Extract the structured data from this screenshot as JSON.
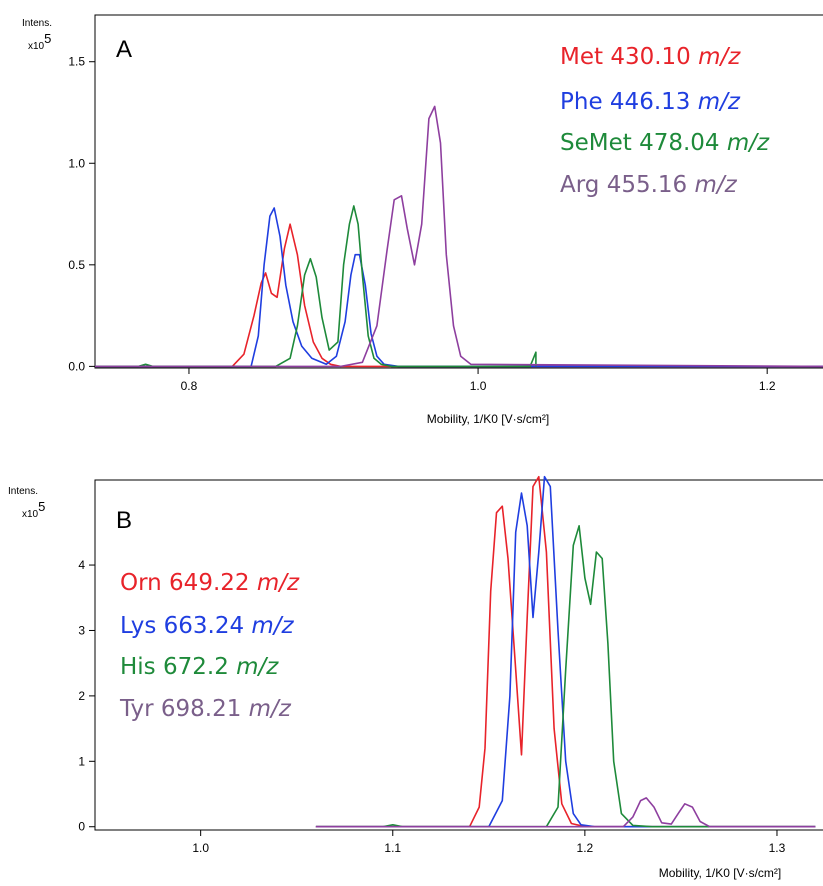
{
  "chart_data": [
    {
      "type": "line",
      "panel_label": "A",
      "ylabel": "Intens.",
      "ylabel_mult_base": "x10",
      "ylabel_mult_exp": "5",
      "xlabel": "Mobility, 1/K0 [V·s/cm²]",
      "xlim": [
        0.735,
        1.24
      ],
      "ylim": [
        -0.008,
        1.73
      ],
      "xticks": [
        0.8,
        1.0,
        1.2
      ],
      "xtick_labels": [
        "0.8",
        "1.0",
        "1.2"
      ],
      "yticks": [
        0.0,
        0.5,
        1.0,
        1.5
      ],
      "ytick_labels": [
        "0.0",
        "0.5",
        "1.0",
        "1.5"
      ],
      "legend_position": "top-right",
      "series": [
        {
          "name": "Met",
          "mz": "430.10",
          "unit": "m/z",
          "color": "#e8232a",
          "x": [
            0.735,
            0.83,
            0.838,
            0.845,
            0.85,
            0.853,
            0.857,
            0.861,
            0.866,
            0.87,
            0.875,
            0.88,
            0.886,
            0.892,
            0.898,
            0.905,
            1.24
          ],
          "y": [
            0.0,
            0.0,
            0.06,
            0.25,
            0.41,
            0.46,
            0.36,
            0.34,
            0.58,
            0.7,
            0.55,
            0.3,
            0.12,
            0.04,
            0.01,
            0.0,
            0.0
          ]
        },
        {
          "name": "Phe",
          "mz": "446.13",
          "unit": "m/z",
          "color": "#1f3ee0",
          "x": [
            0.735,
            0.843,
            0.848,
            0.852,
            0.856,
            0.859,
            0.863,
            0.867,
            0.872,
            0.878,
            0.885,
            0.895,
            0.902,
            0.908,
            0.912,
            0.915,
            0.918,
            0.922,
            0.926,
            0.93,
            0.935,
            0.945,
            1.24
          ],
          "y": [
            0.0,
            0.0,
            0.15,
            0.5,
            0.74,
            0.78,
            0.64,
            0.4,
            0.22,
            0.1,
            0.04,
            0.01,
            0.05,
            0.22,
            0.45,
            0.55,
            0.55,
            0.4,
            0.16,
            0.05,
            0.01,
            0.0,
            0.0
          ]
        },
        {
          "name": "SeMet",
          "mz": "478.04",
          "unit": "m/z",
          "color": "#1e8a3a",
          "x": [
            0.735,
            0.765,
            0.77,
            0.775,
            0.86,
            0.87,
            0.875,
            0.88,
            0.884,
            0.888,
            0.892,
            0.897,
            0.903,
            0.907,
            0.911,
            0.914,
            0.917,
            0.92,
            0.924,
            0.928,
            0.933,
            0.94,
            1.036,
            1.04,
            1.04
          ],
          "y": [
            0.0,
            0.0,
            0.01,
            0.0,
            0.0,
            0.04,
            0.2,
            0.45,
            0.53,
            0.44,
            0.24,
            0.08,
            0.12,
            0.5,
            0.7,
            0.79,
            0.7,
            0.45,
            0.15,
            0.04,
            0.01,
            0.0,
            0.0,
            0.07,
            0.0
          ]
        },
        {
          "name": "Arg",
          "mz": "455.16",
          "unit": "m/z",
          "color": "#8e3f9f",
          "x": [
            0.735,
            0.905,
            0.92,
            0.93,
            0.937,
            0.942,
            0.947,
            0.951,
            0.956,
            0.961,
            0.966,
            0.97,
            0.974,
            0.978,
            0.983,
            0.988,
            0.995,
            1.24
          ],
          "y": [
            0.0,
            0.0,
            0.02,
            0.2,
            0.57,
            0.82,
            0.84,
            0.68,
            0.5,
            0.7,
            1.22,
            1.28,
            1.1,
            0.55,
            0.2,
            0.05,
            0.01,
            0.0
          ]
        }
      ]
    },
    {
      "type": "line",
      "panel_label": "B",
      "ylabel": "Intens.",
      "ylabel_mult_base": "x10",
      "ylabel_mult_exp": "5",
      "xlabel": "Mobility, 1/K0 [V·s/cm²]",
      "xlim": [
        0.945,
        1.325
      ],
      "ylim": [
        -0.05,
        5.3
      ],
      "xticks": [
        1.0,
        1.1,
        1.2,
        1.3
      ],
      "xtick_labels": [
        "1.0",
        "1.1",
        "1.2",
        "1.3"
      ],
      "yticks": [
        0,
        1,
        2,
        3,
        4
      ],
      "ytick_labels": [
        "0",
        "1",
        "2",
        "3",
        "4"
      ],
      "legend_position": "top-left",
      "series": [
        {
          "name": "Orn",
          "mz": "649.22",
          "unit": "m/z",
          "color": "#e8232a",
          "x": [
            1.06,
            1.14,
            1.145,
            1.148,
            1.151,
            1.154,
            1.157,
            1.16,
            1.164,
            1.167,
            1.17,
            1.173,
            1.176,
            1.18,
            1.184,
            1.188,
            1.193,
            1.2,
            1.32
          ],
          "y": [
            0.0,
            0.0,
            0.3,
            1.2,
            3.6,
            4.8,
            4.9,
            4.1,
            2.4,
            1.1,
            3.2,
            5.2,
            5.35,
            4.2,
            1.5,
            0.35,
            0.05,
            0.0,
            0.0
          ]
        },
        {
          "name": "Lys",
          "mz": "663.24",
          "unit": "m/z",
          "color": "#1f3ee0",
          "x": [
            1.06,
            1.15,
            1.157,
            1.161,
            1.164,
            1.167,
            1.17,
            1.173,
            1.176,
            1.179,
            1.182,
            1.186,
            1.19,
            1.194,
            1.198,
            1.205,
            1.32
          ],
          "y": [
            0.0,
            0.0,
            0.4,
            2.0,
            4.5,
            5.1,
            4.6,
            3.2,
            4.2,
            5.35,
            5.2,
            3.0,
            1.0,
            0.2,
            0.03,
            0.0,
            0.0
          ]
        },
        {
          "name": "His",
          "mz": "672.2",
          "unit": "m/z",
          "color": "#1e8a3a",
          "x": [
            1.06,
            1.095,
            1.1,
            1.105,
            1.18,
            1.186,
            1.19,
            1.194,
            1.197,
            1.2,
            1.203,
            1.206,
            1.209,
            1.212,
            1.215,
            1.219,
            1.225,
            1.235,
            1.32
          ],
          "y": [
            0.0,
            0.0,
            0.03,
            0.0,
            0.0,
            0.3,
            2.4,
            4.3,
            4.6,
            3.8,
            3.4,
            4.2,
            4.1,
            2.8,
            1.0,
            0.2,
            0.02,
            0.0,
            0.0
          ]
        },
        {
          "name": "Tyr",
          "mz": "698.21",
          "unit": "m/z",
          "color": "#8e3f9f",
          "x": [
            1.06,
            1.22,
            1.225,
            1.229,
            1.232,
            1.236,
            1.24,
            1.245,
            1.249,
            1.252,
            1.256,
            1.26,
            1.265,
            1.32
          ],
          "y": [
            0.0,
            0.0,
            0.15,
            0.4,
            0.44,
            0.3,
            0.06,
            0.04,
            0.22,
            0.35,
            0.3,
            0.08,
            0.0,
            0.0
          ]
        }
      ]
    }
  ]
}
